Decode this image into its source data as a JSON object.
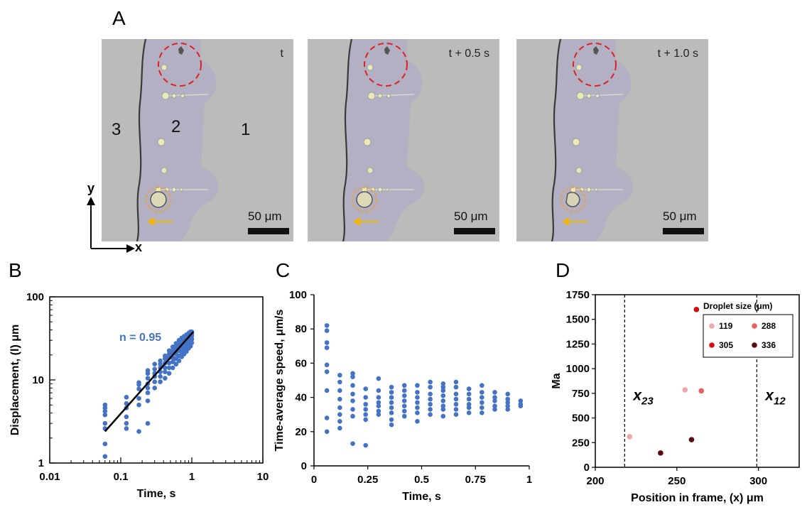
{
  "panel_a": {
    "letter": "A",
    "frames": [
      {
        "time_label": "t",
        "scale_label": "50 μm"
      },
      {
        "time_label": "t + 0.5 s",
        "scale_label": "50 μm"
      },
      {
        "time_label": "t + 1.0 s",
        "scale_label": "50 μm"
      }
    ],
    "regions": [
      "3",
      "2",
      "1"
    ],
    "axes": {
      "y": "y",
      "x": "x"
    },
    "colors": {
      "region2": "#b3b0c4",
      "bg": "#bbbbb9",
      "circle_red": "#e02020",
      "circle_orange": "#f0a030",
      "arrow": "#f5b800"
    }
  },
  "chart_data": [
    {
      "panel": "B",
      "type": "scatter",
      "xscale": "log",
      "yscale": "log",
      "xlim": [
        0.01,
        10
      ],
      "ylim": [
        1,
        100
      ],
      "xticks": [
        "0.01",
        "0.1",
        "1",
        "10"
      ],
      "yticks": [
        "1",
        "10",
        "100"
      ],
      "xlabel": "Time, s",
      "ylabel": "Displacement, (l) μm",
      "annotation": "n = 0.95",
      "fit": {
        "x": [
          0.06,
          1.05
        ],
        "y": [
          2.4,
          38
        ]
      },
      "color": "#4472c4",
      "points": [
        [
          0.06,
          1.2
        ],
        [
          0.06,
          1.7
        ],
        [
          0.06,
          2.6
        ],
        [
          0.06,
          3.0
        ],
        [
          0.06,
          3.8
        ],
        [
          0.06,
          4.2
        ],
        [
          0.06,
          4.6
        ],
        [
          0.06,
          5.0
        ],
        [
          0.12,
          2.6
        ],
        [
          0.12,
          3.0
        ],
        [
          0.12,
          3.6
        ],
        [
          0.12,
          4.6
        ],
        [
          0.12,
          5.2
        ],
        [
          0.12,
          6.2
        ],
        [
          0.18,
          2.4
        ],
        [
          0.18,
          5.0
        ],
        [
          0.18,
          6.0
        ],
        [
          0.18,
          7.8
        ],
        [
          0.18,
          8.8
        ],
        [
          0.18,
          9.3
        ],
        [
          0.24,
          3.0
        ],
        [
          0.24,
          5.6
        ],
        [
          0.24,
          7.0
        ],
        [
          0.24,
          8.0
        ],
        [
          0.24,
          9.0
        ],
        [
          0.24,
          10.5
        ],
        [
          0.24,
          12.0
        ],
        [
          0.24,
          13.0
        ],
        [
          0.3,
          8.0
        ],
        [
          0.3,
          9.5
        ],
        [
          0.3,
          11.0
        ],
        [
          0.3,
          12.0
        ],
        [
          0.3,
          13.5
        ],
        [
          0.3,
          15.5
        ],
        [
          0.36,
          9.5
        ],
        [
          0.36,
          11.0
        ],
        [
          0.36,
          12.5
        ],
        [
          0.36,
          14.0
        ],
        [
          0.36,
          15.5
        ],
        [
          0.36,
          17.0
        ],
        [
          0.42,
          10.5
        ],
        [
          0.42,
          12.5
        ],
        [
          0.42,
          14.0
        ],
        [
          0.42,
          16.0
        ],
        [
          0.42,
          18.0
        ],
        [
          0.42,
          19.5
        ],
        [
          0.48,
          12.0
        ],
        [
          0.48,
          14.0
        ],
        [
          0.48,
          16.0
        ],
        [
          0.48,
          18.5
        ],
        [
          0.48,
          20.5
        ],
        [
          0.48,
          22.5
        ],
        [
          0.54,
          14.0
        ],
        [
          0.54,
          16.5
        ],
        [
          0.54,
          18.5
        ],
        [
          0.54,
          21.0
        ],
        [
          0.54,
          23.0
        ],
        [
          0.54,
          25.0
        ],
        [
          0.6,
          15.5
        ],
        [
          0.6,
          18.0
        ],
        [
          0.6,
          20.5
        ],
        [
          0.6,
          23.0
        ],
        [
          0.6,
          25.5
        ],
        [
          0.6,
          27.5
        ],
        [
          0.66,
          17.0
        ],
        [
          0.66,
          19.5
        ],
        [
          0.66,
          22.5
        ],
        [
          0.66,
          25.0
        ],
        [
          0.66,
          27.5
        ],
        [
          0.66,
          30.0
        ],
        [
          0.72,
          19.0
        ],
        [
          0.72,
          21.5
        ],
        [
          0.72,
          24.0
        ],
        [
          0.72,
          27.0
        ],
        [
          0.72,
          29.5
        ],
        [
          0.72,
          32.0
        ],
        [
          0.78,
          20.5
        ],
        [
          0.78,
          23.5
        ],
        [
          0.78,
          26.5
        ],
        [
          0.78,
          29.0
        ],
        [
          0.78,
          31.5
        ],
        [
          0.78,
          33.5
        ],
        [
          0.84,
          22.0
        ],
        [
          0.84,
          25.0
        ],
        [
          0.84,
          28.0
        ],
        [
          0.84,
          31.0
        ],
        [
          0.84,
          33.0
        ],
        [
          0.84,
          35.0
        ],
        [
          0.9,
          24.0
        ],
        [
          0.9,
          27.0
        ],
        [
          0.9,
          30.0
        ],
        [
          0.9,
          32.5
        ],
        [
          0.9,
          35.0
        ],
        [
          0.9,
          36.5
        ],
        [
          0.96,
          25.5
        ],
        [
          0.96,
          29.0
        ],
        [
          0.96,
          32.0
        ],
        [
          0.96,
          34.5
        ],
        [
          0.96,
          36.5
        ],
        [
          0.96,
          38.0
        ],
        [
          1.0,
          28.0
        ],
        [
          1.0,
          31.0
        ],
        [
          1.0,
          34.0
        ],
        [
          1.0,
          36.0
        ],
        [
          1.0,
          38.0
        ]
      ]
    },
    {
      "panel": "C",
      "type": "scatter",
      "xlim": [
        0,
        1
      ],
      "ylim": [
        0,
        100
      ],
      "xticks": [
        "0",
        "0.25",
        "0.5",
        "0.75",
        "1"
      ],
      "yticks": [
        "0",
        "20",
        "40",
        "60",
        "80",
        "100"
      ],
      "xlabel": "Time, s",
      "ylabel": "Time-average speed, μm/s",
      "color": "#4472c4",
      "points": [
        [
          0.06,
          82
        ],
        [
          0.06,
          79
        ],
        [
          0.06,
          72
        ],
        [
          0.06,
          69
        ],
        [
          0.06,
          59
        ],
        [
          0.06,
          55
        ],
        [
          0.06,
          44
        ],
        [
          0.06,
          28
        ],
        [
          0.06,
          20
        ],
        [
          0.12,
          53
        ],
        [
          0.12,
          49
        ],
        [
          0.12,
          44
        ],
        [
          0.12,
          39
        ],
        [
          0.12,
          34
        ],
        [
          0.12,
          30
        ],
        [
          0.12,
          26
        ],
        [
          0.12,
          22
        ],
        [
          0.18,
          54
        ],
        [
          0.18,
          52
        ],
        [
          0.18,
          47
        ],
        [
          0.18,
          42
        ],
        [
          0.18,
          38
        ],
        [
          0.18,
          33
        ],
        [
          0.18,
          29
        ],
        [
          0.18,
          13
        ],
        [
          0.24,
          45
        ],
        [
          0.24,
          40
        ],
        [
          0.24,
          36
        ],
        [
          0.24,
          33
        ],
        [
          0.24,
          30
        ],
        [
          0.24,
          27
        ],
        [
          0.24,
          12
        ],
        [
          0.3,
          51
        ],
        [
          0.3,
          44
        ],
        [
          0.3,
          40
        ],
        [
          0.3,
          37
        ],
        [
          0.3,
          35
        ],
        [
          0.3,
          32
        ],
        [
          0.3,
          30
        ],
        [
          0.36,
          46
        ],
        [
          0.36,
          43
        ],
        [
          0.36,
          40
        ],
        [
          0.36,
          37
        ],
        [
          0.36,
          34
        ],
        [
          0.36,
          31
        ],
        [
          0.36,
          27
        ],
        [
          0.36,
          24
        ],
        [
          0.42,
          47
        ],
        [
          0.42,
          44
        ],
        [
          0.42,
          41
        ],
        [
          0.42,
          38
        ],
        [
          0.42,
          35
        ],
        [
          0.42,
          32
        ],
        [
          0.42,
          29
        ],
        [
          0.48,
          47
        ],
        [
          0.48,
          43
        ],
        [
          0.48,
          40
        ],
        [
          0.48,
          37
        ],
        [
          0.48,
          34
        ],
        [
          0.48,
          31
        ],
        [
          0.48,
          26
        ],
        [
          0.54,
          49
        ],
        [
          0.54,
          46
        ],
        [
          0.54,
          42
        ],
        [
          0.54,
          39
        ],
        [
          0.54,
          36
        ],
        [
          0.54,
          33
        ],
        [
          0.54,
          30
        ],
        [
          0.6,
          48
        ],
        [
          0.6,
          46
        ],
        [
          0.6,
          44
        ],
        [
          0.6,
          41
        ],
        [
          0.6,
          38
        ],
        [
          0.6,
          35
        ],
        [
          0.6,
          33
        ],
        [
          0.6,
          29
        ],
        [
          0.66,
          49
        ],
        [
          0.66,
          46
        ],
        [
          0.66,
          42
        ],
        [
          0.66,
          39
        ],
        [
          0.66,
          36
        ],
        [
          0.66,
          33
        ],
        [
          0.66,
          30
        ],
        [
          0.72,
          45
        ],
        [
          0.72,
          42
        ],
        [
          0.72,
          39
        ],
        [
          0.72,
          36
        ],
        [
          0.72,
          34
        ],
        [
          0.72,
          31
        ],
        [
          0.78,
          47
        ],
        [
          0.78,
          43
        ],
        [
          0.78,
          40
        ],
        [
          0.78,
          37
        ],
        [
          0.78,
          34
        ],
        [
          0.78,
          31
        ],
        [
          0.84,
          43
        ],
        [
          0.84,
          40
        ],
        [
          0.84,
          38
        ],
        [
          0.84,
          35
        ],
        [
          0.84,
          33
        ],
        [
          0.9,
          42
        ],
        [
          0.9,
          39
        ],
        [
          0.9,
          37
        ],
        [
          0.9,
          35
        ],
        [
          0.9,
          33
        ],
        [
          0.96,
          38
        ],
        [
          0.96,
          36
        ],
        [
          0.96,
          35
        ]
      ]
    },
    {
      "panel": "D",
      "type": "scatter",
      "xlim": [
        200,
        325
      ],
      "ylim": [
        0,
        1750
      ],
      "xticks": [
        "200",
        "250",
        "300"
      ],
      "yticks": [
        "0",
        "250",
        "500",
        "750",
        "1000",
        "1250",
        "1500",
        "1750"
      ],
      "xlabel": "Position in frame, (x) μm",
      "ylabel": "Ma",
      "vlines": [
        {
          "x": 218,
          "label": "x23"
        },
        {
          "x": 299,
          "label": "x12"
        }
      ],
      "legend_title": "Droplet size (μm)",
      "series": [
        {
          "name": "119",
          "color": "#f4a6a6",
          "points": [
            [
              221,
              310
            ],
            [
              255,
              785
            ]
          ]
        },
        {
          "name": "288",
          "color": "#e86060",
          "points": [
            [
              265,
              775
            ]
          ]
        },
        {
          "name": "305",
          "color": "#d00f0f",
          "points": [
            [
              262,
              1600
            ]
          ]
        },
        {
          "name": "336",
          "color": "#5a0a0a",
          "points": [
            [
              240,
              145
            ],
            [
              259,
              280
            ]
          ]
        }
      ]
    }
  ]
}
